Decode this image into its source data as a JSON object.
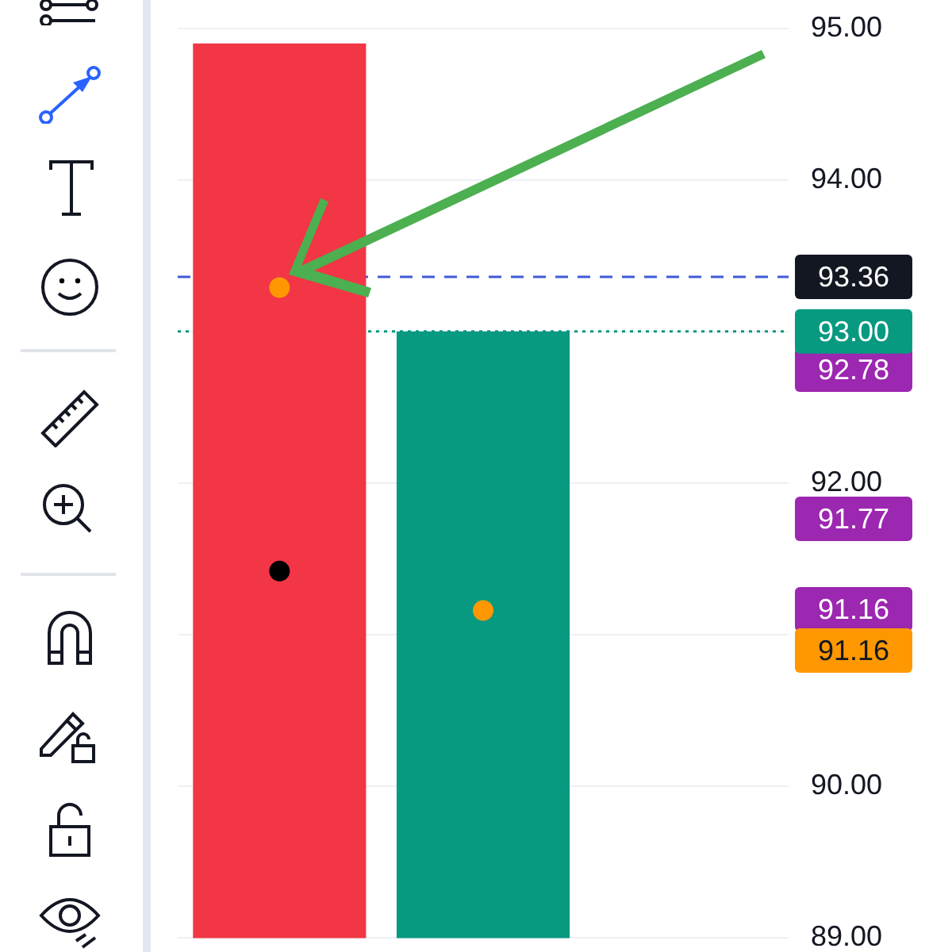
{
  "chart_data": {
    "type": "bar",
    "categories": [
      null,
      null,
      null
    ],
    "values": [
      94.9,
      93.0,
      null
    ],
    "colors": [
      "#f23645",
      "#089981",
      null
    ],
    "series": [
      {
        "type": "scatter",
        "color": "#ff9800",
        "values": [
          93.29,
          91.16,
          null
        ]
      },
      {
        "type": "scatter",
        "color": "#000000",
        "values": [
          91.42,
          null,
          null
        ]
      }
    ],
    "ylim": [
      89,
      95
    ],
    "yticks": [
      {
        "value": 89,
        "label": "89.00"
      },
      {
        "value": 90,
        "label": "90.00"
      },
      {
        "value": 91,
        "label": null
      },
      {
        "value": 92,
        "label": "92.00"
      },
      {
        "value": 93,
        "label": null
      },
      {
        "value": 94,
        "label": "94.00"
      },
      {
        "value": 95,
        "label": "95.00"
      }
    ],
    "grid": "y",
    "marker": "circle",
    "ref_lines": [
      {
        "axis": "y",
        "value": 93.36,
        "label": "93.36",
        "color": "#3f5bd8",
        "line_style": "dashed"
      },
      {
        "axis": "y",
        "value": 93.0,
        "label": "93.00",
        "color": "#089981",
        "line_style": "dotted"
      }
    ],
    "annotations": [
      "92.78",
      "91.77",
      "91.16",
      "91.16"
    ]
  }
}
